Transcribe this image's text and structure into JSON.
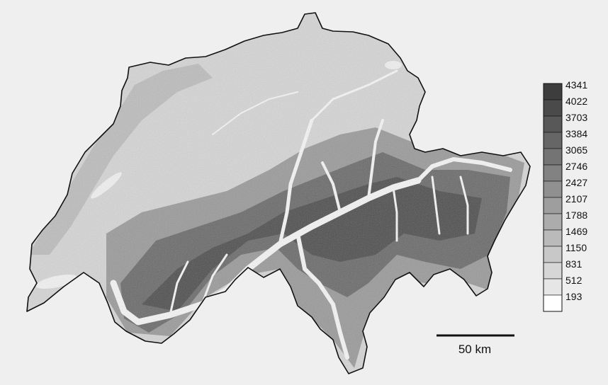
{
  "legend": {
    "labels": [
      "4341",
      "4022",
      "3703",
      "3384",
      "3065",
      "2746",
      "2427",
      "2107",
      "1788",
      "1469",
      "1150",
      "831",
      "512",
      "193"
    ],
    "colors": [
      "#3d3d3d",
      "#4a4a4a",
      "#585858",
      "#666666",
      "#747474",
      "#828282",
      "#909090",
      "#9e9e9e",
      "#acacac",
      "#bababa",
      "#c8c8c8",
      "#d6d6d6",
      "#e6e6e6",
      "#ffffff"
    ]
  },
  "scale_bar": {
    "label": "50 km"
  },
  "colors": {
    "background": "#efefef",
    "lowland": "#d9d9d9",
    "mountains": "#5c5c5c",
    "valleys": "#ffffff",
    "outline": "#111111"
  }
}
